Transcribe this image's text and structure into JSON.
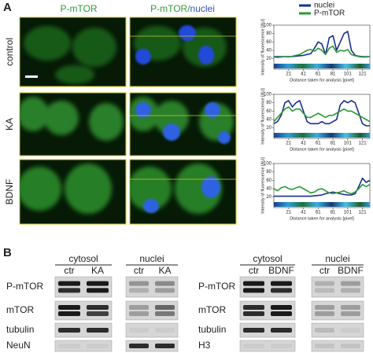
{
  "panel_a": {
    "label": "A",
    "header_green": "P-mTOR",
    "header_merge": [
      "P-mTOR/",
      "nuclei"
    ],
    "rows": [
      "control",
      "KA",
      "BDNF"
    ]
  },
  "chart_data": [
    {
      "type": "line",
      "ylabel": "Intensity of fluorescence [AU]",
      "xlabel": "Distance taken for analysis [pixel]",
      "x": [
        1,
        6,
        11,
        16,
        21,
        26,
        31,
        36,
        41,
        46,
        51,
        56,
        61,
        66,
        71,
        76,
        81,
        86,
        91,
        96,
        101,
        106,
        111,
        116,
        121,
        126,
        131
      ],
      "xlim": [
        1,
        131
      ],
      "xticks": [
        21,
        41,
        61,
        81,
        101,
        121
      ],
      "ylim": [
        10,
        100
      ],
      "yticks": [
        20,
        40,
        60,
        80,
        100
      ],
      "series": [
        {
          "name": "nuclei",
          "color": "#1a2f8f",
          "values": [
            25,
            25,
            25,
            25,
            25,
            25,
            26,
            27,
            28,
            30,
            32,
            45,
            60,
            55,
            30,
            70,
            75,
            40,
            60,
            80,
            85,
            40,
            28,
            26,
            25,
            25,
            25
          ]
        },
        {
          "name": "P-mTOR",
          "color": "#2a9a35",
          "values": [
            24,
            23,
            24,
            25,
            24,
            26,
            28,
            30,
            35,
            40,
            42,
            38,
            45,
            40,
            30,
            45,
            50,
            35,
            40,
            38,
            42,
            30,
            27,
            25,
            24,
            24,
            25
          ]
        }
      ]
    },
    {
      "type": "line",
      "ylabel": "Intensity of fluorescence [AU]",
      "xlabel": "Distance taken for analysis [pixel]",
      "x": [
        1,
        6,
        11,
        16,
        21,
        26,
        31,
        36,
        41,
        46,
        51,
        56,
        61,
        66,
        71,
        76,
        81,
        86,
        91,
        96,
        101,
        106,
        111,
        116,
        121,
        126,
        131
      ],
      "xlim": [
        1,
        131
      ],
      "xticks": [
        21,
        41,
        61,
        81,
        101,
        121
      ],
      "ylim": [
        10,
        100
      ],
      "yticks": [
        20,
        40,
        60,
        80,
        100
      ],
      "series": [
        {
          "name": "nuclei",
          "color": "#1a2f8f",
          "values": [
            30,
            35,
            50,
            80,
            85,
            70,
            80,
            85,
            60,
            35,
            30,
            30,
            30,
            35,
            30,
            30,
            35,
            40,
            75,
            85,
            80,
            85,
            80,
            55,
            30,
            25,
            25
          ]
        },
        {
          "name": "P-mTOR",
          "color": "#2a9a35",
          "values": [
            35,
            45,
            55,
            65,
            70,
            60,
            65,
            65,
            55,
            45,
            45,
            50,
            55,
            50,
            45,
            50,
            50,
            55,
            60,
            65,
            60,
            60,
            55,
            50,
            45,
            40,
            35
          ]
        }
      ]
    },
    {
      "type": "line",
      "ylabel": "Intensity of fluorescence [AU]",
      "xlabel": "Distance taken for analysis [pixel]",
      "x": [
        1,
        6,
        11,
        16,
        21,
        26,
        31,
        36,
        41,
        46,
        51,
        56,
        61,
        66,
        71,
        76,
        81,
        86,
        91,
        96,
        101,
        106,
        111,
        116,
        121,
        126,
        131
      ],
      "xlim": [
        1,
        131
      ],
      "xticks": [
        21,
        41,
        61,
        81,
        101,
        121
      ],
      "ylim": [
        10,
        100
      ],
      "yticks": [
        20,
        40,
        60,
        80,
        100
      ],
      "series": [
        {
          "name": "nuclei",
          "color": "#1a2f8f",
          "values": [
            22,
            22,
            22,
            22,
            22,
            22,
            22,
            22,
            22,
            22,
            22,
            23,
            24,
            25,
            28,
            30,
            32,
            30,
            28,
            26,
            25,
            25,
            28,
            45,
            65,
            55,
            60
          ]
        },
        {
          "name": "P-mTOR",
          "color": "#2a9a35",
          "values": [
            40,
            35,
            42,
            45,
            40,
            38,
            42,
            45,
            40,
            35,
            30,
            32,
            38,
            40,
            35,
            30,
            28,
            30,
            32,
            35,
            30,
            28,
            32,
            40,
            50,
            45,
            50
          ]
        }
      ]
    }
  ],
  "panel_b": {
    "label": "B",
    "blots": [
      {
        "groups": [
          {
            "title": "cytosol",
            "lanes": [
              "ctr",
              "KA"
            ]
          },
          {
            "title": "nuclei",
            "lanes": [
              "ctr",
              "KA"
            ]
          }
        ],
        "rows": [
          "P-mTOR",
          "mTOR",
          "tubulin",
          "NeuN"
        ]
      },
      {
        "groups": [
          {
            "title": "cytosol",
            "lanes": [
              "ctr",
              "BDNF"
            ]
          },
          {
            "title": "nuclei",
            "lanes": [
              "ctr",
              "BDNF"
            ]
          }
        ],
        "rows": [
          "P-mTOR",
          "mTOR",
          "tubulin",
          "H3"
        ]
      }
    ]
  }
}
